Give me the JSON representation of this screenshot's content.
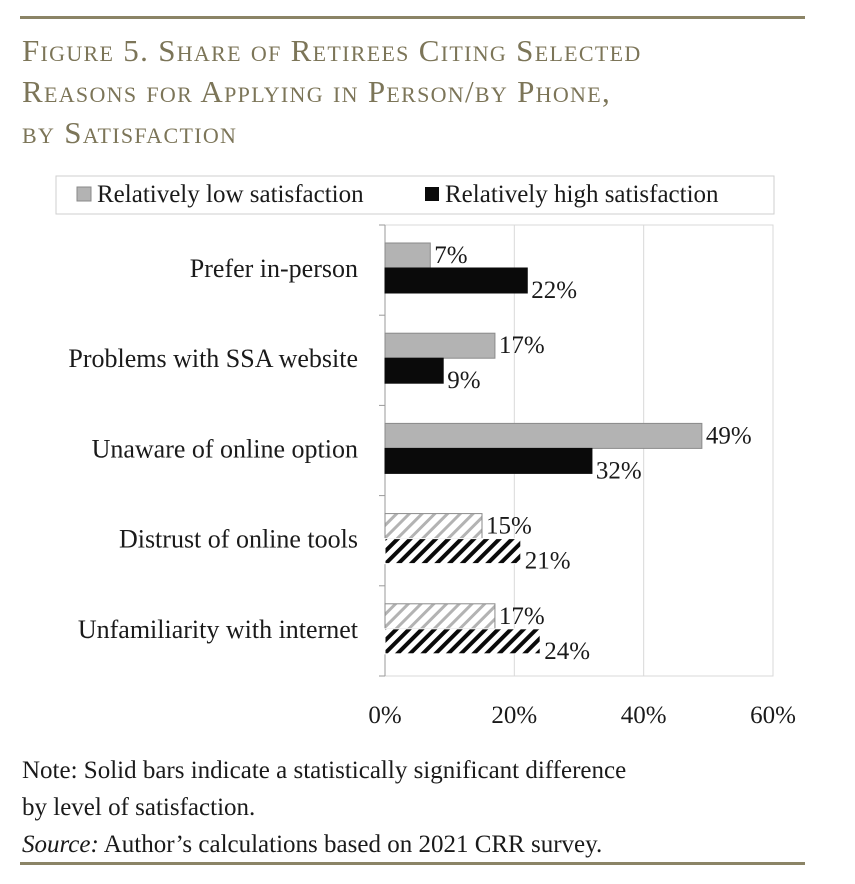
{
  "figure": {
    "title_lines": [
      "Figure 5. Share of Retirees Citing Selected",
      "Reasons for Applying in Person/by Phone,",
      "by Satisfaction"
    ],
    "note": "Note: Solid bars indicate a statistically significant difference",
    "note_line2": "by level of satisfaction.",
    "source_label": "Source:",
    "source_text": " Author’s calculations based on 2021 CRR survey."
  },
  "chart_data": {
    "type": "bar",
    "orientation": "horizontal",
    "categories": [
      "Prefer in-person",
      "Problems with SSA website",
      "Unaware of online option",
      "Distrust of online tools",
      "Unfamiliarity with internet"
    ],
    "series": [
      {
        "name": "Relatively low satisfaction",
        "values": [
          7,
          17,
          49,
          15,
          17
        ],
        "color": "#b3b3b3"
      },
      {
        "name": "Relatively high satisfaction",
        "values": [
          22,
          9,
          32,
          21,
          24
        ],
        "color": "#0a0a0a"
      }
    ],
    "value_labels": [
      [
        "7%",
        "17%",
        "49%",
        "15%",
        "17%"
      ],
      [
        "22%",
        "9%",
        "32%",
        "21%",
        "24%"
      ]
    ],
    "significant": [
      true,
      true,
      true,
      false,
      false
    ],
    "xlim": [
      0,
      60
    ],
    "xticks": [
      "0%",
      "20%",
      "40%",
      "60%"
    ],
    "grid": true,
    "legend_position": "top"
  }
}
